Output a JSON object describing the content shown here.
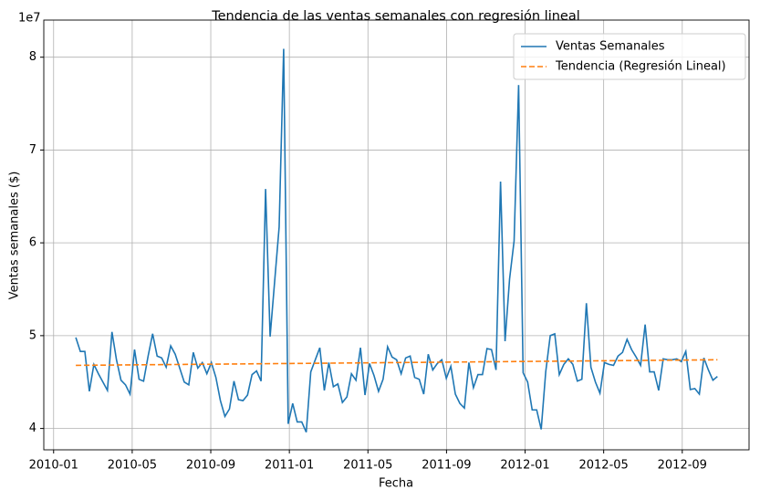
{
  "chart_data": {
    "type": "line",
    "title": "Tendencia de las ventas semanales con regresión lineal",
    "x_label": "Fecha",
    "y_label": "Ventas semanales ($)",
    "y_offset_label": "1e7",
    "xlim": [
      -0.5,
      35.4
    ],
    "ylim": [
      3.77,
      8.4
    ],
    "xticks": [
      {
        "value": 0,
        "label": "2010-01"
      },
      {
        "value": 4,
        "label": "2010-05"
      },
      {
        "value": 8,
        "label": "2010-09"
      },
      {
        "value": 12,
        "label": "2011-01"
      },
      {
        "value": 16,
        "label": "2011-05"
      },
      {
        "value": 20,
        "label": "2011-09"
      },
      {
        "value": 24,
        "label": "2012-01"
      },
      {
        "value": 28,
        "label": "2012-05"
      },
      {
        "value": 32,
        "label": "2012-09"
      }
    ],
    "yticks": [
      4,
      5,
      6,
      7,
      8
    ],
    "grid": true,
    "legend": "upper right",
    "series": [
      {
        "name": "Ventas Semanales",
        "color": "#1f77b4",
        "dashed": false,
        "x": [
          1.13,
          1.36,
          1.59,
          1.82,
          2.05,
          2.28,
          2.51,
          2.74,
          2.97,
          3.2,
          3.43,
          3.66,
          3.89,
          4.12,
          4.35,
          4.58,
          4.81,
          5.04,
          5.27,
          5.5,
          5.73,
          5.96,
          6.19,
          6.42,
          6.65,
          6.88,
          7.11,
          7.34,
          7.57,
          7.8,
          8.03,
          8.26,
          8.49,
          8.72,
          8.95,
          9.18,
          9.41,
          9.64,
          9.87,
          10.1,
          10.33,
          10.56,
          10.79,
          11.02,
          11.25,
          11.48,
          11.71,
          11.94,
          12.17,
          12.4,
          12.63,
          12.86,
          13.09,
          13.32,
          13.55,
          13.78,
          14.01,
          14.24,
          14.47,
          14.7,
          14.93,
          15.16,
          15.39,
          15.62,
          15.85,
          16.08,
          16.31,
          16.54,
          16.77,
          17.0,
          17.23,
          17.46,
          17.69,
          17.92,
          18.15,
          18.38,
          18.61,
          18.84,
          19.07,
          19.3,
          19.53,
          19.76,
          19.99,
          20.22,
          20.45,
          20.68,
          20.91,
          21.14,
          21.37,
          21.6,
          21.83,
          22.06,
          22.29,
          22.52,
          22.75,
          22.98,
          23.21,
          23.44,
          23.67,
          23.9,
          24.13,
          24.36,
          24.59,
          24.82,
          25.05,
          25.28,
          25.51,
          25.74,
          25.97,
          26.2,
          26.43,
          26.66,
          26.89,
          27.12,
          27.35,
          27.58,
          27.81,
          28.04,
          28.27,
          28.5,
          28.73,
          28.96,
          29.19,
          29.42,
          29.65,
          29.88,
          30.11,
          30.34,
          30.57,
          30.8,
          31.03,
          31.26,
          31.49,
          31.72,
          31.95,
          32.18,
          32.41,
          32.64,
          32.87,
          33.1,
          33.33,
          33.56,
          33.79
        ],
        "values": [
          4.98,
          4.83,
          4.83,
          4.4,
          4.69,
          4.59,
          4.5,
          4.41,
          5.04,
          4.74,
          4.52,
          4.47,
          4.37,
          4.85,
          4.53,
          4.51,
          4.78,
          5.02,
          4.78,
          4.76,
          4.66,
          4.89,
          4.8,
          4.65,
          4.5,
          4.47,
          4.82,
          4.65,
          4.71,
          4.59,
          4.71,
          4.55,
          4.3,
          4.13,
          4.21,
          4.51,
          4.31,
          4.3,
          4.36,
          4.58,
          4.62,
          4.51,
          6.58,
          4.99,
          5.58,
          6.17,
          8.09,
          4.05,
          4.27,
          4.07,
          4.07,
          3.96,
          4.61,
          4.74,
          4.87,
          4.41,
          4.71,
          4.45,
          4.48,
          4.28,
          4.34,
          4.59,
          4.52,
          4.87,
          4.36,
          4.7,
          4.57,
          4.4,
          4.53,
          4.88,
          4.77,
          4.74,
          4.59,
          4.76,
          4.78,
          4.55,
          4.53,
          4.37,
          4.8,
          4.63,
          4.7,
          4.74,
          4.54,
          4.67,
          4.37,
          4.27,
          4.22,
          4.71,
          4.44,
          4.58,
          4.58,
          4.86,
          4.85,
          4.63,
          6.66,
          4.94,
          5.61,
          6.02,
          7.7,
          4.6,
          4.5,
          4.2,
          4.2,
          3.99,
          4.61,
          5.0,
          5.02,
          4.58,
          4.69,
          4.75,
          4.69,
          4.51,
          4.53,
          5.35,
          4.66,
          4.5,
          4.38,
          4.71,
          4.69,
          4.68,
          4.78,
          4.82,
          4.96,
          4.85,
          4.77,
          4.68,
          5.12,
          4.61,
          4.61,
          4.41,
          4.75,
          4.74,
          4.74,
          4.75,
          4.72,
          4.83,
          4.42,
          4.43,
          4.37,
          4.76,
          4.63,
          4.52,
          4.56
        ]
      },
      {
        "name": "Tendencia (Regresión Lineal)",
        "color": "#ff7f0e",
        "dashed": true,
        "x": [
          1.13,
          33.79
        ],
        "values": [
          4.68,
          4.74
        ]
      }
    ]
  }
}
